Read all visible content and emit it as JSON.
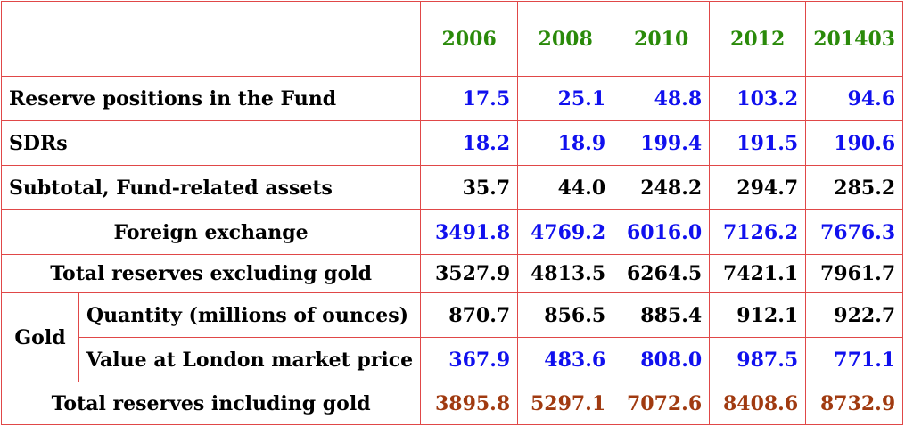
{
  "header": {
    "years": [
      "2006",
      "2008",
      "2010",
      "2012",
      "201403"
    ]
  },
  "rows": {
    "reserve_positions": {
      "label": "Reserve positions in the Fund",
      "values": [
        "17.5",
        "25.1",
        "48.8",
        "103.2",
        "94.6"
      ]
    },
    "sdrs": {
      "label": "SDRs",
      "values": [
        "18.2",
        "18.9",
        "199.4",
        "191.5",
        "190.6"
      ]
    },
    "subtotal": {
      "label": "Subtotal, Fund-related assets",
      "values": [
        "35.7",
        "44.0",
        "248.2",
        "294.7",
        "285.2"
      ]
    },
    "foreign_exchange": {
      "label": "Foreign exchange",
      "values": [
        "3491.8",
        "4769.2",
        "6016.0",
        "7126.2",
        "7676.3"
      ]
    },
    "total_excl_gold": {
      "label": "Total reserves excluding gold",
      "values": [
        "3527.9",
        "4813.5",
        "6264.5",
        "7421.1",
        "7961.7"
      ]
    },
    "gold_group_label": "Gold",
    "gold_quantity": {
      "label": "Quantity (millions of ounces)",
      "values": [
        "870.7",
        "856.5",
        "885.4",
        "912.1",
        "922.7"
      ]
    },
    "gold_value": {
      "label": "Value at London market price",
      "values": [
        "367.9",
        "483.6",
        "808.0",
        "987.5",
        "771.1"
      ]
    },
    "total_incl_gold": {
      "label": "Total reserves including gold",
      "values": [
        "3895.8",
        "5297.1",
        "7072.6",
        "8408.6",
        "8732.9"
      ]
    }
  },
  "colors": {
    "header_year": "#2a8a0a",
    "blue_value": "#1010ee",
    "brown_value": "#a03a10",
    "border": "#e04848"
  }
}
